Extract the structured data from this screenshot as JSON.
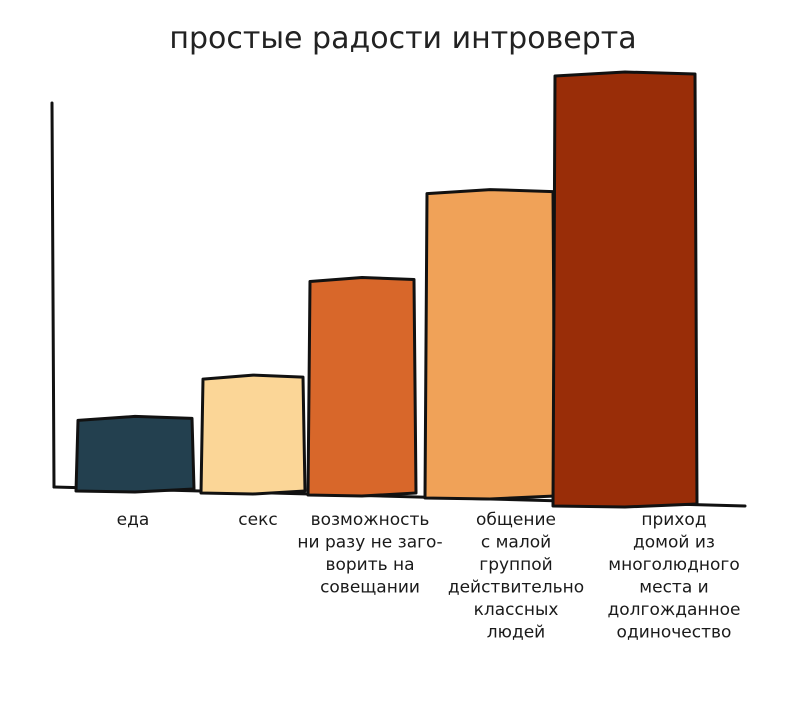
{
  "chart_data": {
    "type": "bar",
    "title": "простые радости интроверта",
    "xlabel": "",
    "ylabel": "",
    "grid": false,
    "legend": "none",
    "ylim": [
      0,
      100
    ],
    "categories": [
      "еда",
      "секс",
      "возможность ни разу не заговорить на совещании",
      "общение с малой группой действительно классных людей",
      "приход домой из многолюдного места и долгожданное одиночество"
    ],
    "category_lines": [
      [
        "еда"
      ],
      [
        "секс"
      ],
      [
        "возможность",
        "ни разу не заго-",
        "ворить на",
        "совещании"
      ],
      [
        "общение",
        "с малой",
        "группой",
        "действительно",
        "классных",
        "людей"
      ],
      [
        "приход",
        "домой из",
        "многолюдного",
        "места и",
        "долгожданное",
        "одиночество"
      ]
    ],
    "values": [
      17,
      27,
      50,
      71,
      100
    ],
    "colors": [
      "#23404f",
      "#fbd697",
      "#d8672a",
      "#f0a258",
      "#992d08"
    ]
  }
}
